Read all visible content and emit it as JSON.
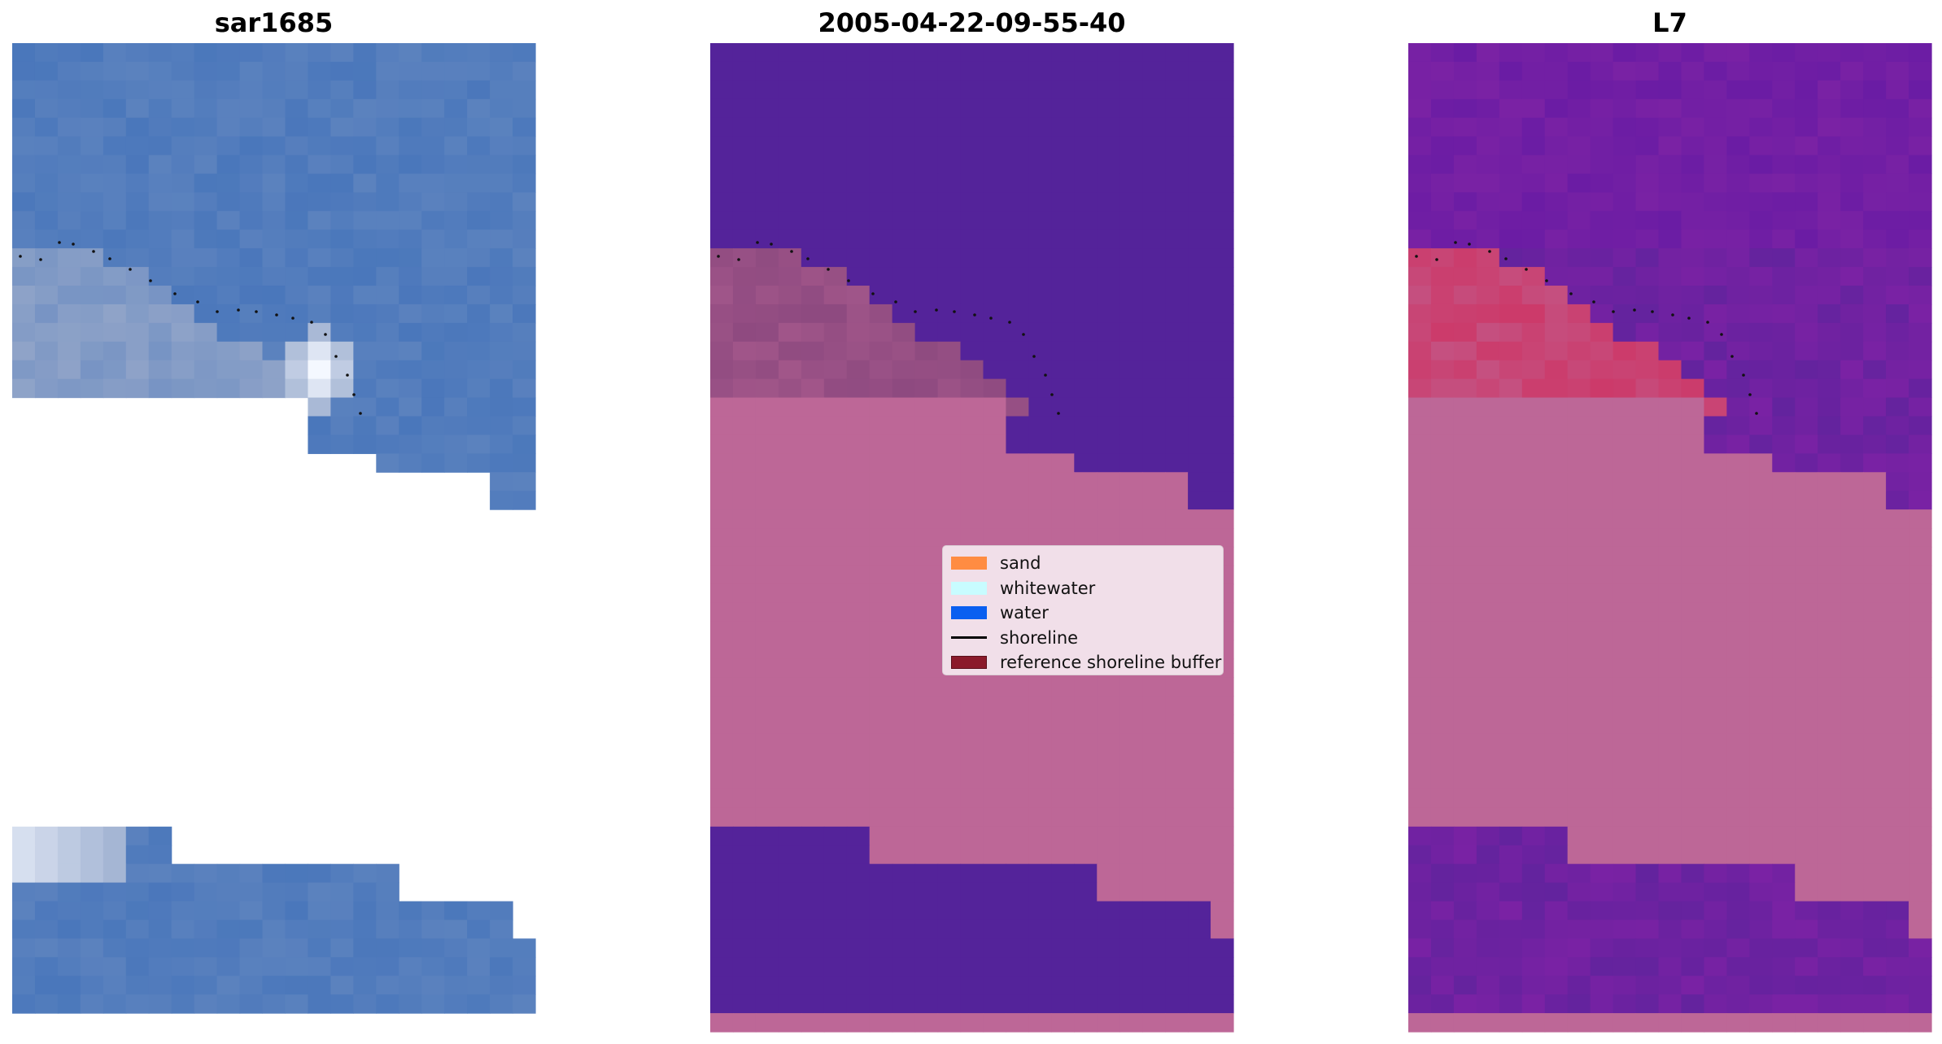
{
  "panels": [
    {
      "title": "sar1685"
    },
    {
      "title": "2005-04-22-09-55-40"
    },
    {
      "title": "L7"
    }
  ],
  "legend": {
    "items": [
      {
        "label": "sand",
        "color": "#ff8c42",
        "kind": "patch"
      },
      {
        "label": "whitewater",
        "color": "#c8fcff",
        "kind": "patch"
      },
      {
        "label": "water",
        "color": "#0a5ff0",
        "kind": "patch"
      },
      {
        "label": "shoreline",
        "color": "#000000",
        "kind": "line"
      },
      {
        "label": "reference shoreline buffer",
        "color": "#8b1a2b",
        "kind": "patch"
      }
    ]
  },
  "colors": {
    "rgb_water": "#4a77bb",
    "rgb_sand": "#8fa3c8",
    "rgb_whitewater": "#f4f8ff",
    "class_water": "#54239a",
    "class_land": "#bd6797",
    "class_sand": "#8e4a80",
    "index_water": "#7a22a4",
    "index_land": "#bd6797",
    "index_sand": "#cc3a6a"
  }
}
